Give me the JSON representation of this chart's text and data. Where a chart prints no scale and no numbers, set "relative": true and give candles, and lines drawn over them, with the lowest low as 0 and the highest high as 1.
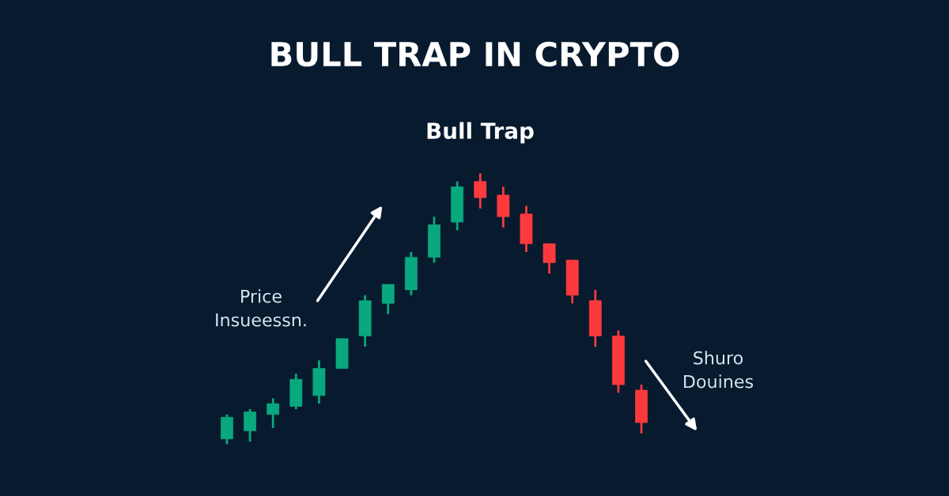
{
  "chart_data": {
    "type": "candlestick",
    "title": "BULL TRAP IN CRYPTO",
    "subtitle": "Bull Trap",
    "relative": true,
    "categories": [
      null,
      null,
      null,
      null,
      null,
      null,
      null,
      null,
      null,
      null,
      null,
      null,
      null,
      null,
      null,
      null,
      null,
      null,
      null
    ],
    "ohlc": [
      [
        0.02,
        0.11,
        0.0,
        0.1
      ],
      [
        0.05,
        0.13,
        0.01,
        0.12
      ],
      [
        0.11,
        0.17,
        0.06,
        0.15
      ],
      [
        0.14,
        0.26,
        0.13,
        0.24
      ],
      [
        0.18,
        0.31,
        0.15,
        0.28
      ],
      [
        0.28,
        0.39,
        0.28,
        0.39
      ],
      [
        0.4,
        0.55,
        0.36,
        0.53
      ],
      [
        0.52,
        0.59,
        0.48,
        0.59
      ],
      [
        0.57,
        0.71,
        0.55,
        0.69
      ],
      [
        0.69,
        0.84,
        0.67,
        0.81
      ],
      [
        0.82,
        0.97,
        0.79,
        0.95
      ],
      [
        0.97,
        1.0,
        0.87,
        0.91
      ],
      [
        0.92,
        0.95,
        0.8,
        0.84
      ],
      [
        0.85,
        0.88,
        0.71,
        0.74
      ],
      [
        0.74,
        0.74,
        0.63,
        0.67
      ],
      [
        0.68,
        0.68,
        0.52,
        0.55
      ],
      [
        0.53,
        0.57,
        0.36,
        0.4
      ],
      [
        0.4,
        0.42,
        0.19,
        0.22
      ],
      [
        0.2,
        0.22,
        0.04,
        0.08
      ]
    ],
    "colors": [
      "#0aa87e",
      "#0aa87e",
      "#0aa87e",
      "#0aa87e",
      "#0aa87e",
      "#0aa87e",
      "#0aa87e",
      "#0aa87e",
      "#0aa87e",
      "#0aa87e",
      "#0aa87e",
      "#fc3a3e",
      "#fc3a3e",
      "#fc3a3e",
      "#fc3a3e",
      "#fc3a3e",
      "#fc3a3e",
      "#fc3a3e",
      "#fc3a3e"
    ],
    "annotations": [
      "Price\nInsueessn.",
      "Shuro\nDouines"
    ],
    "grid": false
  }
}
